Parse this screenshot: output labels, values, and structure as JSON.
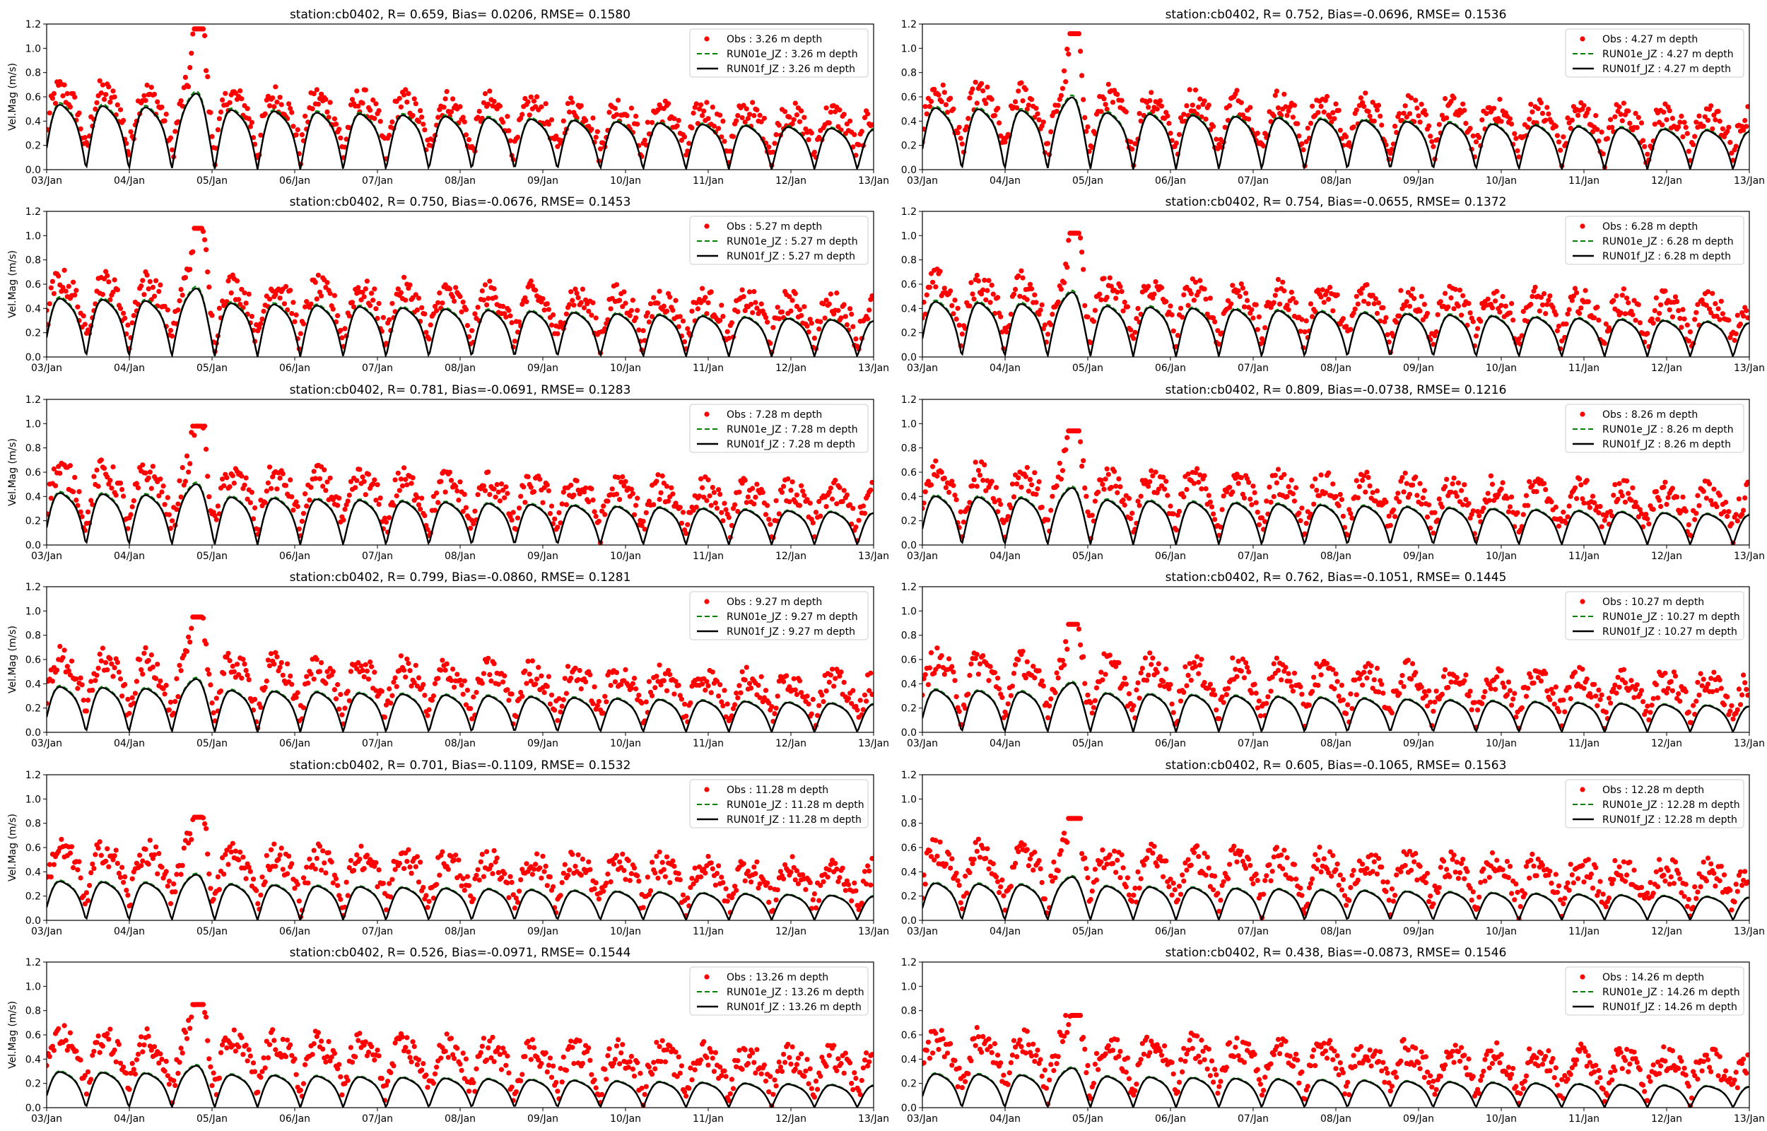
{
  "colors": {
    "obs": "#ff0000",
    "run_e": "#008000",
    "run_f": "#000000",
    "axis": "#000000"
  },
  "chart_data": [
    {
      "type": "line",
      "title": "station:cb0402, R= 0.659, Bias= 0.0206, RMSE= 0.1580",
      "depth": 3.26,
      "obs_max": 1.16,
      "model_scale": 1.0,
      "legend": [
        "Obs : 3.26 m depth",
        "RUN01e_JZ : 3.26 m depth",
        "RUN01f_JZ : 3.26 m depth"
      ],
      "ylabel": "Vel.Mag (m/s)",
      "xlabel": "",
      "ylim": [
        0,
        1.2
      ],
      "yticks": [
        "0.0",
        "0.2",
        "0.4",
        "0.6",
        "0.8",
        "1.0",
        "1.2"
      ],
      "xticks": [
        "03/Jan",
        "04/Jan",
        "05/Jan",
        "06/Jan",
        "07/Jan",
        "08/Jan",
        "09/Jan",
        "10/Jan",
        "11/Jan",
        "12/Jan",
        "13/Jan"
      ]
    },
    {
      "type": "line",
      "title": "station:cb0402, R= 0.752, Bias=-0.0696, RMSE= 0.1536",
      "depth": 4.27,
      "obs_max": 1.12,
      "model_scale": 0.95,
      "legend": [
        "Obs : 4.27 m depth",
        "RUN01e_JZ : 4.27 m depth",
        "RUN01f_JZ : 4.27 m depth"
      ],
      "ylabel": "",
      "xlabel": "",
      "ylim": [
        0,
        1.2
      ],
      "yticks": [
        "0.0",
        "0.2",
        "0.4",
        "0.6",
        "0.8",
        "1.0",
        "1.2"
      ],
      "xticks": [
        "03/Jan",
        "04/Jan",
        "05/Jan",
        "06/Jan",
        "07/Jan",
        "08/Jan",
        "09/Jan",
        "10/Jan",
        "11/Jan",
        "12/Jan",
        "13/Jan"
      ]
    },
    {
      "type": "line",
      "title": "station:cb0402, R= 0.750, Bias=-0.0676, RMSE= 0.1453",
      "depth": 5.27,
      "obs_max": 1.06,
      "model_scale": 0.9,
      "legend": [
        "Obs : 5.27 m depth",
        "RUN01e_JZ : 5.27 m depth",
        "RUN01f_JZ : 5.27 m depth"
      ],
      "ylabel": "Vel.Mag (m/s)",
      "xlabel": "",
      "ylim": [
        0,
        1.2
      ],
      "yticks": [
        "0.0",
        "0.2",
        "0.4",
        "0.6",
        "0.8",
        "1.0",
        "1.2"
      ],
      "xticks": [
        "03/Jan",
        "04/Jan",
        "05/Jan",
        "06/Jan",
        "07/Jan",
        "08/Jan",
        "09/Jan",
        "10/Jan",
        "11/Jan",
        "12/Jan",
        "13/Jan"
      ]
    },
    {
      "type": "line",
      "title": "station:cb0402, R= 0.754, Bias=-0.0655, RMSE= 0.1372",
      "depth": 6.28,
      "obs_max": 1.02,
      "model_scale": 0.85,
      "legend": [
        "Obs : 6.28 m depth",
        "RUN01e_JZ : 6.28 m depth",
        "RUN01f_JZ : 6.28 m depth"
      ],
      "ylabel": "",
      "xlabel": "",
      "ylim": [
        0,
        1.2
      ],
      "yticks": [
        "0.0",
        "0.2",
        "0.4",
        "0.6",
        "0.8",
        "1.0",
        "1.2"
      ],
      "xticks": [
        "03/Jan",
        "04/Jan",
        "05/Jan",
        "06/Jan",
        "07/Jan",
        "08/Jan",
        "09/Jan",
        "10/Jan",
        "11/Jan",
        "12/Jan",
        "13/Jan"
      ]
    },
    {
      "type": "line",
      "title": "station:cb0402, R= 0.781, Bias=-0.0691, RMSE= 0.1283",
      "depth": 7.28,
      "obs_max": 0.98,
      "model_scale": 0.8,
      "legend": [
        "Obs : 7.28 m depth",
        "RUN01e_JZ : 7.28 m depth",
        "RUN01f_JZ : 7.28 m depth"
      ],
      "ylabel": "Vel.Mag (m/s)",
      "xlabel": "",
      "ylim": [
        0,
        1.2
      ],
      "yticks": [
        "0.0",
        "0.2",
        "0.4",
        "0.6",
        "0.8",
        "1.0",
        "1.2"
      ],
      "xticks": [
        "03/Jan",
        "04/Jan",
        "05/Jan",
        "06/Jan",
        "07/Jan",
        "08/Jan",
        "09/Jan",
        "10/Jan",
        "11/Jan",
        "12/Jan",
        "13/Jan"
      ]
    },
    {
      "type": "line",
      "title": "station:cb0402, R= 0.809, Bias=-0.0738, RMSE= 0.1216",
      "depth": 8.26,
      "obs_max": 0.94,
      "model_scale": 0.75,
      "legend": [
        "Obs : 8.26 m depth",
        "RUN01e_JZ : 8.26 m depth",
        "RUN01f_JZ : 8.26 m depth"
      ],
      "ylabel": "",
      "xlabel": "",
      "ylim": [
        0,
        1.2
      ],
      "yticks": [
        "0.0",
        "0.2",
        "0.4",
        "0.6",
        "0.8",
        "1.0",
        "1.2"
      ],
      "xticks": [
        "03/Jan",
        "04/Jan",
        "05/Jan",
        "06/Jan",
        "07/Jan",
        "08/Jan",
        "09/Jan",
        "10/Jan",
        "11/Jan",
        "12/Jan",
        "13/Jan"
      ]
    },
    {
      "type": "line",
      "title": "station:cb0402, R= 0.799, Bias=-0.0860, RMSE= 0.1281",
      "depth": 9.27,
      "obs_max": 0.95,
      "model_scale": 0.7,
      "legend": [
        "Obs : 9.27 m depth",
        "RUN01e_JZ : 9.27 m depth",
        "RUN01f_JZ : 9.27 m depth"
      ],
      "ylabel": "Vel.Mag (m/s)",
      "xlabel": "",
      "ylim": [
        0,
        1.2
      ],
      "yticks": [
        "0.0",
        "0.2",
        "0.4",
        "0.6",
        "0.8",
        "1.0",
        "1.2"
      ],
      "xticks": [
        "03/Jan",
        "04/Jan",
        "05/Jan",
        "06/Jan",
        "07/Jan",
        "08/Jan",
        "09/Jan",
        "10/Jan",
        "11/Jan",
        "12/Jan",
        "13/Jan"
      ]
    },
    {
      "type": "line",
      "title": "station:cb0402, R= 0.762, Bias=-0.1051, RMSE= 0.1445",
      "depth": 10.27,
      "obs_max": 0.89,
      "model_scale": 0.65,
      "legend": [
        "Obs : 10.27 m depth",
        "RUN01e_JZ : 10.27 m depth",
        "RUN01f_JZ : 10.27 m depth"
      ],
      "ylabel": "",
      "xlabel": "",
      "ylim": [
        0,
        1.2
      ],
      "yticks": [
        "0.0",
        "0.2",
        "0.4",
        "0.6",
        "0.8",
        "1.0",
        "1.2"
      ],
      "xticks": [
        "03/Jan",
        "04/Jan",
        "05/Jan",
        "06/Jan",
        "07/Jan",
        "08/Jan",
        "09/Jan",
        "10/Jan",
        "11/Jan",
        "12/Jan",
        "13/Jan"
      ]
    },
    {
      "type": "line",
      "title": "station:cb0402, R= 0.701, Bias=-0.1109, RMSE= 0.1532",
      "depth": 11.28,
      "obs_max": 0.85,
      "model_scale": 0.6,
      "legend": [
        "Obs : 11.28 m depth",
        "RUN01e_JZ : 11.28 m depth",
        "RUN01f_JZ : 11.28 m depth"
      ],
      "ylabel": "Vel.Mag (m/s)",
      "xlabel": "",
      "ylim": [
        0,
        1.2
      ],
      "yticks": [
        "0.0",
        "0.2",
        "0.4",
        "0.6",
        "0.8",
        "1.0",
        "1.2"
      ],
      "xticks": [
        "03/Jan",
        "04/Jan",
        "05/Jan",
        "06/Jan",
        "07/Jan",
        "08/Jan",
        "09/Jan",
        "10/Jan",
        "11/Jan",
        "12/Jan",
        "13/Jan"
      ]
    },
    {
      "type": "line",
      "title": "station:cb0402, R= 0.605, Bias=-0.1065, RMSE= 0.1563",
      "depth": 12.28,
      "obs_max": 0.84,
      "model_scale": 0.57,
      "legend": [
        "Obs : 12.28 m depth",
        "RUN01e_JZ : 12.28 m depth",
        "RUN01f_JZ : 12.28 m depth"
      ],
      "ylabel": "",
      "xlabel": "",
      "ylim": [
        0,
        1.2
      ],
      "yticks": [
        "0.0",
        "0.2",
        "0.4",
        "0.6",
        "0.8",
        "1.0",
        "1.2"
      ],
      "xticks": [
        "03/Jan",
        "04/Jan",
        "05/Jan",
        "06/Jan",
        "07/Jan",
        "08/Jan",
        "09/Jan",
        "10/Jan",
        "11/Jan",
        "12/Jan",
        "13/Jan"
      ]
    },
    {
      "type": "line",
      "title": "station:cb0402, R= 0.526, Bias=-0.0971, RMSE= 0.1544",
      "depth": 13.26,
      "obs_max": 0.85,
      "model_scale": 0.55,
      "legend": [
        "Obs : 13.26 m depth",
        "RUN01e_JZ : 13.26 m depth",
        "RUN01f_JZ : 13.26 m depth"
      ],
      "ylabel": "Vel.Mag (m/s)",
      "xlabel": "",
      "ylim": [
        0,
        1.2
      ],
      "yticks": [
        "0.0",
        "0.2",
        "0.4",
        "0.6",
        "0.8",
        "1.0",
        "1.2"
      ],
      "xticks": [
        "03/Jan",
        "04/Jan",
        "05/Jan",
        "06/Jan",
        "07/Jan",
        "08/Jan",
        "09/Jan",
        "10/Jan",
        "11/Jan",
        "12/Jan",
        "13/Jan"
      ]
    },
    {
      "type": "line",
      "title": "station:cb0402, R= 0.438, Bias=-0.0873, RMSE= 0.1546",
      "depth": 14.26,
      "obs_max": 0.76,
      "model_scale": 0.52,
      "legend": [
        "Obs : 14.26 m depth",
        "RUN01e_JZ : 14.26 m depth",
        "RUN01f_JZ : 14.26 m depth"
      ],
      "ylabel": "",
      "xlabel": "",
      "ylim": [
        0,
        1.2
      ],
      "yticks": [
        "0.0",
        "0.2",
        "0.4",
        "0.6",
        "0.8",
        "1.0",
        "1.2"
      ],
      "xticks": [
        "03/Jan",
        "04/Jan",
        "05/Jan",
        "06/Jan",
        "07/Jan",
        "08/Jan",
        "09/Jan",
        "10/Jan",
        "11/Jan",
        "12/Jan",
        "13/Jan"
      ]
    }
  ]
}
